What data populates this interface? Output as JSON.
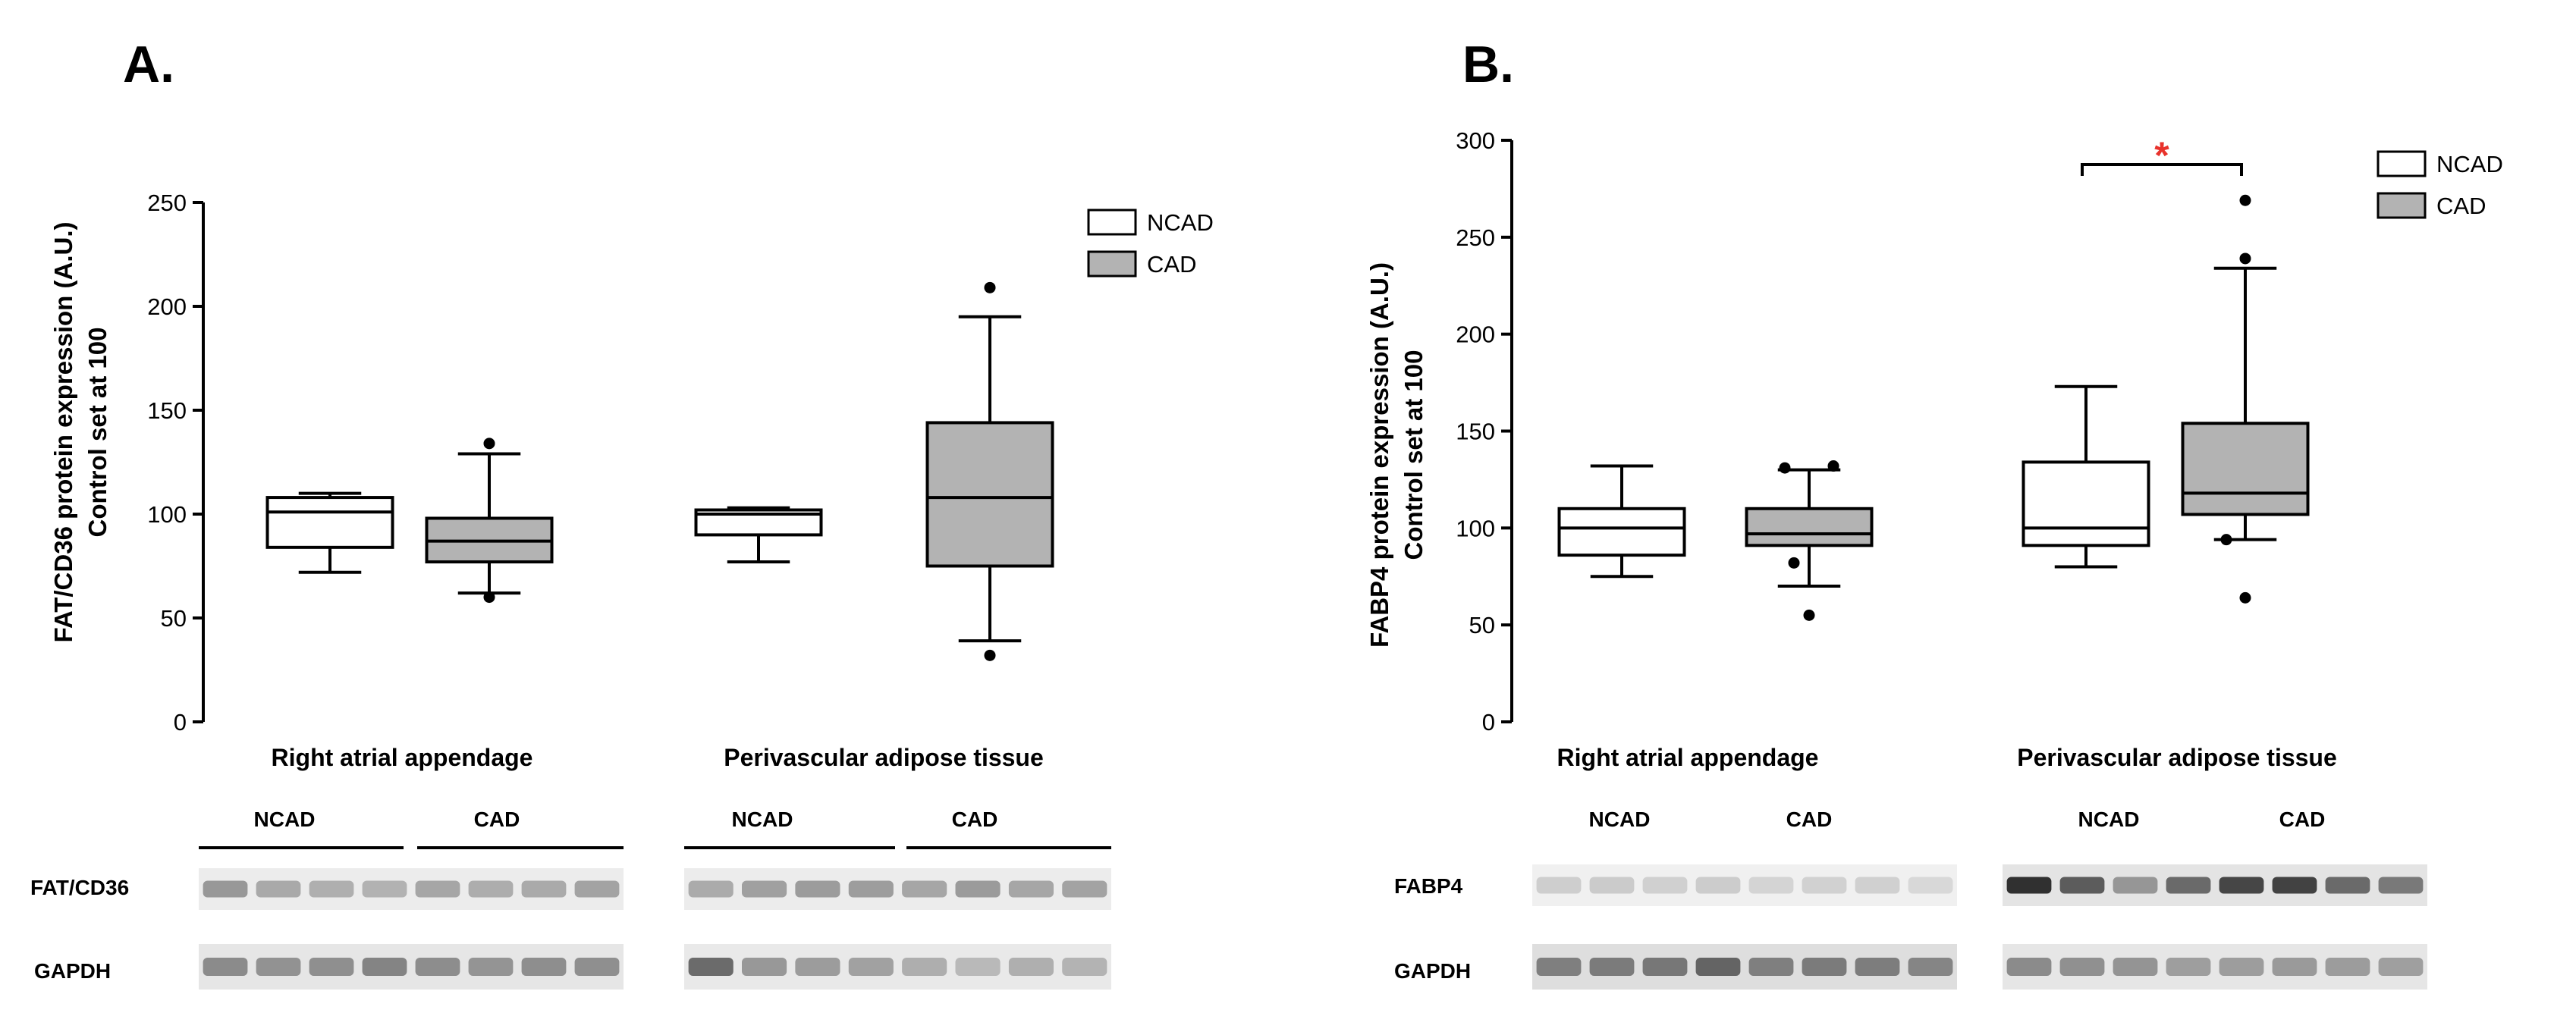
{
  "panels": {
    "a": {
      "letter": "A.",
      "ylabel_line1": "FAT/CD36 protein expression (A.U.)",
      "ylabel_line2": "Control set at 100",
      "group_labels": [
        "Right atrial appendage",
        "Perivascular adipose tissue"
      ],
      "blot_group_labels": [
        "NCAD",
        "CAD",
        "NCAD",
        "CAD"
      ],
      "blot_rows": [
        "FAT/CD36",
        "GAPDH"
      ]
    },
    "b": {
      "letter": "B.",
      "ylabel_line1": "FABP4 protein expression (A.U.)",
      "ylabel_line2": "Control set at 100",
      "group_labels": [
        "Right atrial appendage",
        "Perivascular adipose tissue"
      ],
      "significance": "*",
      "blot_group_labels": [
        "NCAD",
        "CAD",
        "NCAD",
        "CAD"
      ],
      "blot_rows": [
        "FABP4",
        "GAPDH"
      ]
    }
  },
  "legend": [
    {
      "label": "NCAD",
      "color": "#ffffff"
    },
    {
      "label": "CAD",
      "color": "#b3b3b3"
    }
  ],
  "chart_data": [
    {
      "type": "box",
      "panel": "A.",
      "ylabel": "FAT/CD36 protein expression (A.U.) Control set at 100",
      "ylim": [
        0,
        250
      ],
      "yticks": [
        0,
        50,
        100,
        150,
        200,
        250
      ],
      "categories": [
        "Right atrial appendage",
        "Perivascular adipose tissue"
      ],
      "series": [
        {
          "name": "NCAD",
          "color": "#ffffff",
          "boxes": [
            {
              "category": "Right atrial appendage",
              "whisker_low": 72,
              "q1": 84,
              "median": 101,
              "q3": 108,
              "whisker_high": 110,
              "outliers": []
            },
            {
              "category": "Perivascular adipose tissue",
              "whisker_low": 77,
              "q1": 90,
              "median": 100,
              "q3": 102,
              "whisker_high": 103,
              "outliers": []
            }
          ]
        },
        {
          "name": "CAD",
          "color": "#b3b3b3",
          "boxes": [
            {
              "category": "Right atrial appendage",
              "whisker_low": 62,
              "q1": 77,
              "median": 87,
              "q3": 98,
              "whisker_high": 129,
              "outliers": [
                134,
                60
              ]
            },
            {
              "category": "Perivascular adipose tissue",
              "whisker_low": 39,
              "q1": 75,
              "median": 108,
              "q3": 144,
              "whisker_high": 195,
              "outliers": [
                209,
                32
              ]
            }
          ]
        }
      ]
    },
    {
      "type": "box",
      "panel": "B.",
      "ylabel": "FABP4 protein expression (A.U.) Control set at 100",
      "ylim": [
        0,
        300
      ],
      "yticks": [
        0,
        50,
        100,
        150,
        200,
        250,
        300
      ],
      "categories": [
        "Right atrial appendage",
        "Perivascular adipose tissue"
      ],
      "series": [
        {
          "name": "NCAD",
          "color": "#ffffff",
          "boxes": [
            {
              "category": "Right atrial appendage",
              "whisker_low": 75,
              "q1": 86,
              "median": 100,
              "q3": 110,
              "whisker_high": 132,
              "outliers": []
            },
            {
              "category": "Perivascular adipose tissue",
              "whisker_low": 80,
              "q1": 91,
              "median": 100,
              "q3": 134,
              "whisker_high": 173,
              "outliers": []
            }
          ]
        },
        {
          "name": "CAD",
          "color": "#b3b3b3",
          "boxes": [
            {
              "category": "Right atrial appendage",
              "whisker_low": 70,
              "q1": 91,
              "median": 97,
              "q3": 110,
              "whisker_high": 130,
              "outliers": [
                131,
                132,
                82,
                55
              ]
            },
            {
              "category": "Perivascular adipose tissue",
              "whisker_low": 94,
              "q1": 107,
              "median": 118,
              "q3": 154,
              "whisker_high": 234,
              "outliers": [
                269,
                239,
                94,
                64
              ]
            }
          ]
        }
      ],
      "annotations": [
        {
          "text": "*",
          "between": [
            "NCAD",
            "CAD"
          ],
          "category": "Perivascular adipose tissue"
        }
      ]
    }
  ]
}
